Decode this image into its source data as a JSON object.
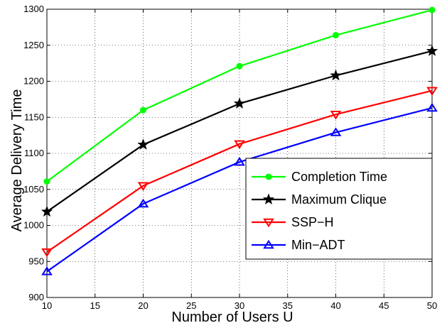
{
  "chart_data": {
    "type": "line",
    "title": "",
    "xlabel": "Number of Users U",
    "ylabel": "Average Delivery Time",
    "xlim": [
      10,
      50
    ],
    "ylim": [
      900,
      1300
    ],
    "xticks": [
      10,
      15,
      20,
      25,
      30,
      35,
      40,
      45,
      50
    ],
    "yticks": [
      900,
      950,
      1000,
      1050,
      1100,
      1150,
      1200,
      1250,
      1300
    ],
    "grid": true,
    "grid_style": "dotted",
    "legend_position": "bottom-right",
    "x": [
      10,
      20,
      30,
      40,
      50
    ],
    "series": [
      {
        "name": "Completion Time",
        "color": "#00ff00",
        "marker": "circle",
        "values": [
          1061,
          1160,
          1221,
          1264,
          1299
        ]
      },
      {
        "name": "Maximum Clique",
        "color": "#000000",
        "marker": "star",
        "values": [
          1019,
          1112,
          1169,
          1208,
          1242
        ]
      },
      {
        "name": "SSP−H",
        "color": "#ff0000",
        "marker": "triangle-down",
        "values": [
          963,
          1055,
          1113,
          1154,
          1187
        ]
      },
      {
        "name": "Min−ADT",
        "color": "#0000ff",
        "marker": "triangle-up",
        "values": [
          936,
          1030,
          1088,
          1129,
          1163
        ]
      }
    ]
  }
}
